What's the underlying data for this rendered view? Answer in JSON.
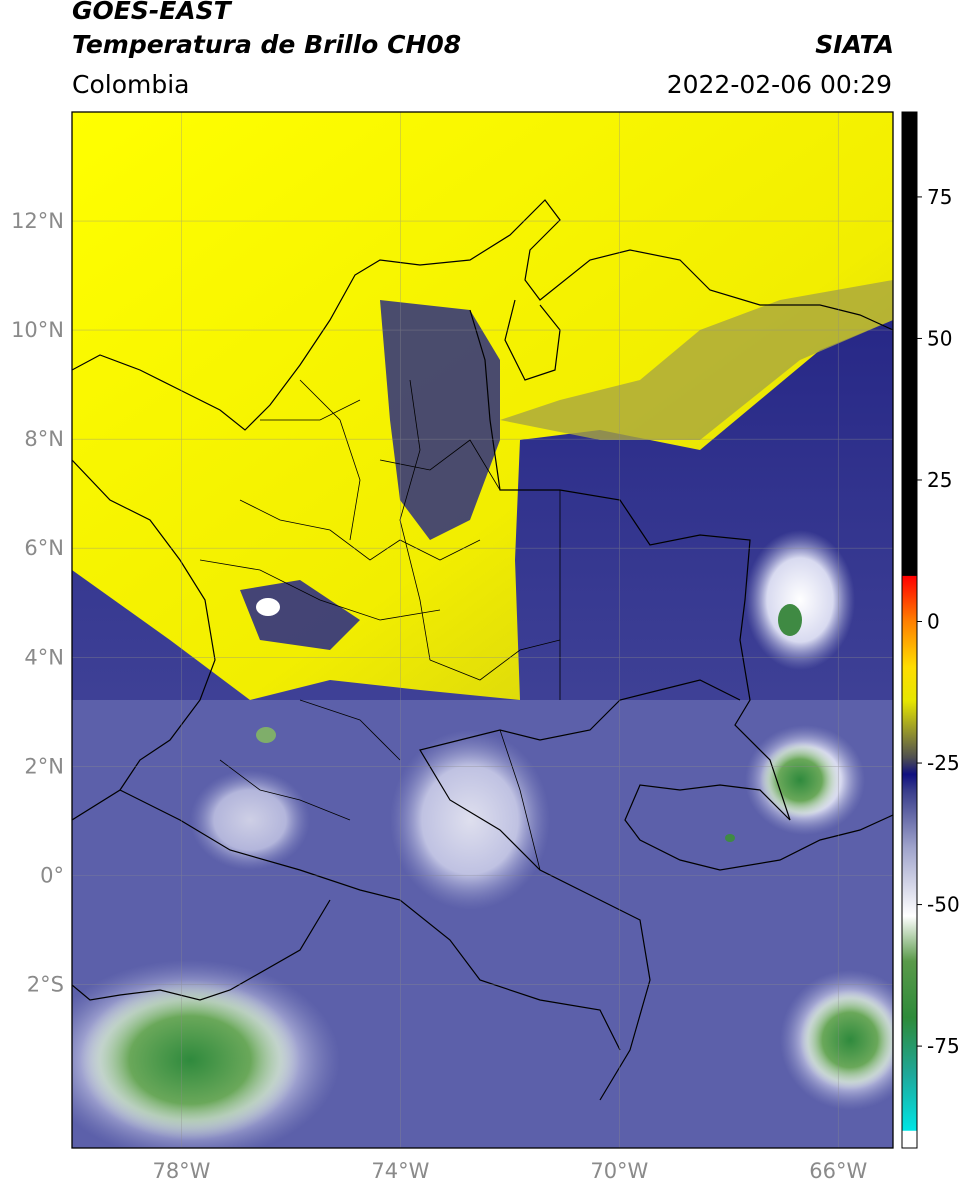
{
  "header": {
    "satellite": "GOES-EAST",
    "product": "Temperatura de Brillo CH08",
    "organization": "SIATA",
    "region": "Colombia",
    "datetime": "2022-02-06 00:29"
  },
  "map": {
    "lon_range": [
      -80.0,
      -65.0
    ],
    "lat_range": [
      -5.0,
      14.0
    ],
    "grid": true,
    "lat_ticks": [
      {
        "v": 12,
        "label": "12°N"
      },
      {
        "v": 10,
        "label": "10°N"
      },
      {
        "v": 8,
        "label": "8°N"
      },
      {
        "v": 6,
        "label": "6°N"
      },
      {
        "v": 4,
        "label": "4°N"
      },
      {
        "v": 2,
        "label": "2°N"
      },
      {
        "v": 0,
        "label": "0°"
      },
      {
        "v": -2,
        "label": "2°S"
      }
    ],
    "lon_ticks": [
      {
        "v": -78,
        "label": "78°W"
      },
      {
        "v": -74,
        "label": "74°W"
      },
      {
        "v": -70,
        "label": "70°W"
      },
      {
        "v": -66,
        "label": "66°W"
      }
    ]
  },
  "colorbar": {
    "range": [
      -93,
      90
    ],
    "ticks": [
      {
        "v": 75,
        "label": "75"
      },
      {
        "v": 50,
        "label": "50"
      },
      {
        "v": 25,
        "label": "25"
      },
      {
        "v": 0,
        "label": "0"
      },
      {
        "v": -25,
        "label": "-25"
      },
      {
        "v": -50,
        "label": "-50"
      },
      {
        "v": -75,
        "label": "-75"
      }
    ],
    "stops": [
      {
        "v": -93,
        "color": "#ffffff"
      },
      {
        "v": -90,
        "color": "#ffffff"
      },
      {
        "v": -89.9,
        "color": "#00e5e5"
      },
      {
        "v": -80,
        "color": "#1fa89a"
      },
      {
        "v": -70,
        "color": "#2e8b3a"
      },
      {
        "v": -60,
        "color": "#5a9a4a"
      },
      {
        "v": -52,
        "color": "#ffffff"
      },
      {
        "v": -40,
        "color": "#a0a4cc"
      },
      {
        "v": -30,
        "color": "#3a3e8c"
      },
      {
        "v": -27,
        "color": "#101080"
      },
      {
        "v": -24,
        "color": "#505050"
      },
      {
        "v": -20,
        "color": "#8c8c30"
      },
      {
        "v": -14,
        "color": "#e6e600"
      },
      {
        "v": -8,
        "color": "#ffdd00"
      },
      {
        "v": 0,
        "color": "#ff8000"
      },
      {
        "v": 8,
        "color": "#ff0000"
      },
      {
        "v": 8.1,
        "color": "#000000"
      },
      {
        "v": 90,
        "color": "#000000"
      }
    ]
  }
}
